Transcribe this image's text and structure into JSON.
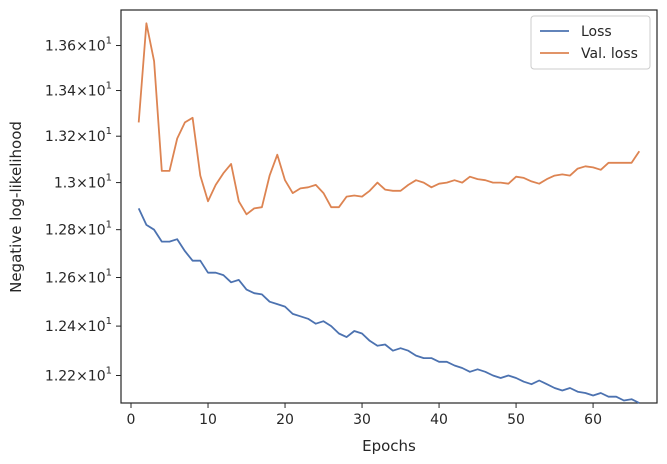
{
  "chart_data": {
    "type": "line",
    "xlabel": "Epochs",
    "ylabel": "Negative log-likelihood",
    "xlim": [
      -1.3,
      68.3
    ],
    "ylim": [
      12.09,
      13.76
    ],
    "x_ticks": [
      0,
      10,
      20,
      30,
      40,
      50,
      60
    ],
    "x_tick_labels": [
      "0",
      "10",
      "20",
      "30",
      "40",
      "50",
      "60"
    ],
    "y_ticks": [
      12.2,
      12.4,
      12.6,
      12.8,
      13.0,
      13.2,
      13.4,
      13.6
    ],
    "y_tick_labels": [
      {
        "mant": "1.22",
        "exp": "1"
      },
      {
        "mant": "1.24",
        "exp": "1"
      },
      {
        "mant": "1.26",
        "exp": "1"
      },
      {
        "mant": "1.28",
        "exp": "1"
      },
      {
        "mant": "1.3",
        "exp": "1"
      },
      {
        "mant": "1.32",
        "exp": "1"
      },
      {
        "mant": "1.34",
        "exp": "1"
      },
      {
        "mant": "1.36",
        "exp": "1"
      }
    ],
    "y_scale": "log",
    "grid": false,
    "legend_position": "top-right",
    "series": [
      {
        "name": "Loss",
        "color": "#4c72b0",
        "x": [
          1,
          2,
          3,
          4,
          5,
          6,
          7,
          8,
          9,
          10,
          11,
          12,
          13,
          14,
          15,
          16,
          17,
          18,
          19,
          20,
          21,
          22,
          23,
          24,
          25,
          26,
          27,
          28,
          29,
          30,
          31,
          32,
          33,
          34,
          35,
          36,
          37,
          38,
          39,
          40,
          41,
          42,
          43,
          44,
          45,
          46,
          47,
          48,
          49,
          50,
          51,
          52,
          53,
          54,
          55,
          56,
          57,
          58,
          59,
          60,
          61,
          62,
          63,
          64,
          65,
          66
        ],
        "values": [
          12.89,
          12.82,
          12.8,
          12.75,
          12.75,
          12.76,
          12.71,
          12.67,
          12.67,
          12.62,
          12.62,
          12.61,
          12.58,
          12.59,
          12.55,
          12.535,
          12.53,
          12.5,
          12.49,
          12.48,
          12.45,
          12.44,
          12.43,
          12.41,
          12.42,
          12.4,
          12.37,
          12.355,
          12.38,
          12.37,
          12.34,
          12.32,
          12.325,
          12.3,
          12.31,
          12.3,
          12.28,
          12.27,
          12.27,
          12.255,
          12.255,
          12.24,
          12.23,
          12.215,
          12.225,
          12.215,
          12.2,
          12.19,
          12.2,
          12.19,
          12.175,
          12.165,
          12.18,
          12.165,
          12.15,
          12.14,
          12.15,
          12.135,
          12.13,
          12.12,
          12.13,
          12.115,
          12.115,
          12.1,
          12.105,
          12.09
        ]
      },
      {
        "name": "Val. loss",
        "color": "#dd8452",
        "x": [
          1,
          2,
          3,
          4,
          5,
          6,
          7,
          8,
          9,
          10,
          11,
          12,
          13,
          14,
          15,
          16,
          17,
          18,
          19,
          20,
          21,
          22,
          23,
          24,
          25,
          26,
          27,
          28,
          29,
          30,
          31,
          32,
          33,
          34,
          35,
          36,
          37,
          38,
          39,
          40,
          41,
          42,
          43,
          44,
          45,
          46,
          47,
          48,
          49,
          50,
          51,
          52,
          53,
          54,
          55,
          56,
          57,
          58,
          59,
          60,
          61,
          62,
          63,
          64,
          65,
          66
        ],
        "values": [
          13.26,
          13.7,
          13.53,
          13.05,
          13.05,
          13.19,
          13.26,
          13.28,
          13.03,
          12.92,
          12.99,
          13.04,
          13.08,
          12.92,
          12.865,
          12.89,
          12.895,
          13.03,
          13.12,
          13.01,
          12.955,
          12.975,
          12.98,
          12.99,
          12.955,
          12.895,
          12.895,
          12.94,
          12.945,
          12.94,
          12.965,
          13.0,
          12.97,
          12.965,
          12.965,
          12.99,
          13.01,
          13.0,
          12.98,
          12.995,
          13.0,
          13.01,
          13.0,
          13.025,
          13.015,
          13.01,
          13.0,
          13.0,
          12.995,
          13.025,
          13.02,
          13.005,
          12.995,
          13.015,
          13.03,
          13.035,
          13.03,
          13.06,
          13.07,
          13.065,
          13.055,
          13.085,
          13.085,
          13.085,
          13.085,
          13.135
        ]
      }
    ]
  }
}
